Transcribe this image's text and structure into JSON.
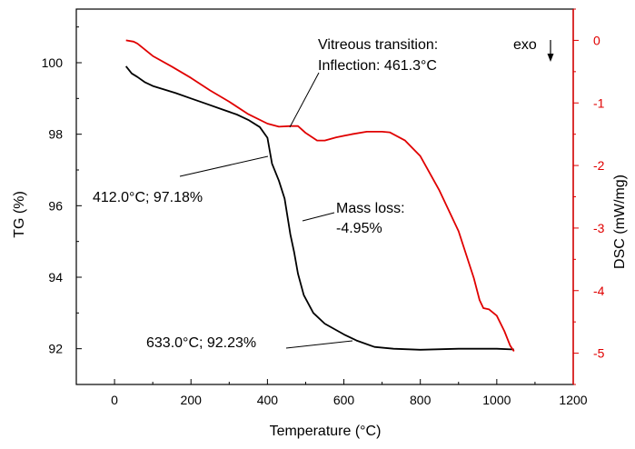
{
  "colors": {
    "tg": "#000000",
    "dsc": "#e00000",
    "axis": "#000000"
  },
  "chart_data": {
    "type": "line",
    "xlabel": "Temperature (°C)",
    "ylabel_left": "TG (%)",
    "ylabel_right": "DSC (mW/mg)",
    "xlim": [
      -100,
      1200
    ],
    "ylim_left": [
      91,
      101.5
    ],
    "ylim_right": [
      -5.5,
      0.5
    ],
    "x_ticks": [
      0,
      200,
      400,
      600,
      800,
      1000,
      1200
    ],
    "y_ticks_left": [
      92,
      94,
      96,
      98,
      100
    ],
    "y_ticks_right": [
      0,
      -1,
      -2,
      -3,
      -4,
      -5
    ],
    "grid": false,
    "series": [
      {
        "axis": "left",
        "points": [
          [
            30,
            99.9
          ],
          [
            45,
            99.7
          ],
          [
            60,
            99.6
          ],
          [
            80,
            99.45
          ],
          [
            100,
            99.35
          ],
          [
            130,
            99.25
          ],
          [
            160,
            99.15
          ],
          [
            200,
            99.0
          ],
          [
            240,
            98.85
          ],
          [
            280,
            98.7
          ],
          [
            320,
            98.55
          ],
          [
            350,
            98.4
          ],
          [
            380,
            98.2
          ],
          [
            400,
            97.9
          ],
          [
            412,
            97.18
          ],
          [
            430,
            96.7
          ],
          [
            445,
            96.2
          ],
          [
            460,
            95.2
          ],
          [
            470,
            94.7
          ],
          [
            480,
            94.1
          ],
          [
            495,
            93.5
          ],
          [
            520,
            93.0
          ],
          [
            550,
            92.7
          ],
          [
            600,
            92.4
          ],
          [
            633,
            92.23
          ],
          [
            680,
            92.05
          ],
          [
            730,
            92.0
          ],
          [
            800,
            91.97
          ],
          [
            900,
            92.0
          ],
          [
            1000,
            92.0
          ],
          [
            1045,
            91.98
          ]
        ]
      },
      {
        "axis": "right",
        "points": [
          [
            30,
            0.0
          ],
          [
            50,
            -0.02
          ],
          [
            60,
            -0.05
          ],
          [
            100,
            -0.25
          ],
          [
            150,
            -0.42
          ],
          [
            200,
            -0.6
          ],
          [
            250,
            -0.8
          ],
          [
            300,
            -0.98
          ],
          [
            350,
            -1.18
          ],
          [
            400,
            -1.33
          ],
          [
            430,
            -1.38
          ],
          [
            461,
            -1.37
          ],
          [
            480,
            -1.37
          ],
          [
            500,
            -1.48
          ],
          [
            530,
            -1.6
          ],
          [
            550,
            -1.6
          ],
          [
            580,
            -1.55
          ],
          [
            620,
            -1.5
          ],
          [
            660,
            -1.46
          ],
          [
            700,
            -1.46
          ],
          [
            720,
            -1.47
          ],
          [
            760,
            -1.6
          ],
          [
            800,
            -1.85
          ],
          [
            850,
            -2.4
          ],
          [
            900,
            -3.05
          ],
          [
            940,
            -3.8
          ],
          [
            955,
            -4.15
          ],
          [
            965,
            -4.28
          ],
          [
            980,
            -4.3
          ],
          [
            1000,
            -4.4
          ],
          [
            1020,
            -4.65
          ],
          [
            1035,
            -4.88
          ],
          [
            1045,
            -4.97
          ]
        ]
      }
    ],
    "annotations": {
      "a1": "Vitreous transition:",
      "a2": "Inflection: 461.3°C",
      "a3": "412.0°C; 97.18%",
      "a4": "Mass loss:",
      "a5": "-4.95%",
      "a6": "633.0°C; 92.23%",
      "a7": "exo"
    }
  }
}
